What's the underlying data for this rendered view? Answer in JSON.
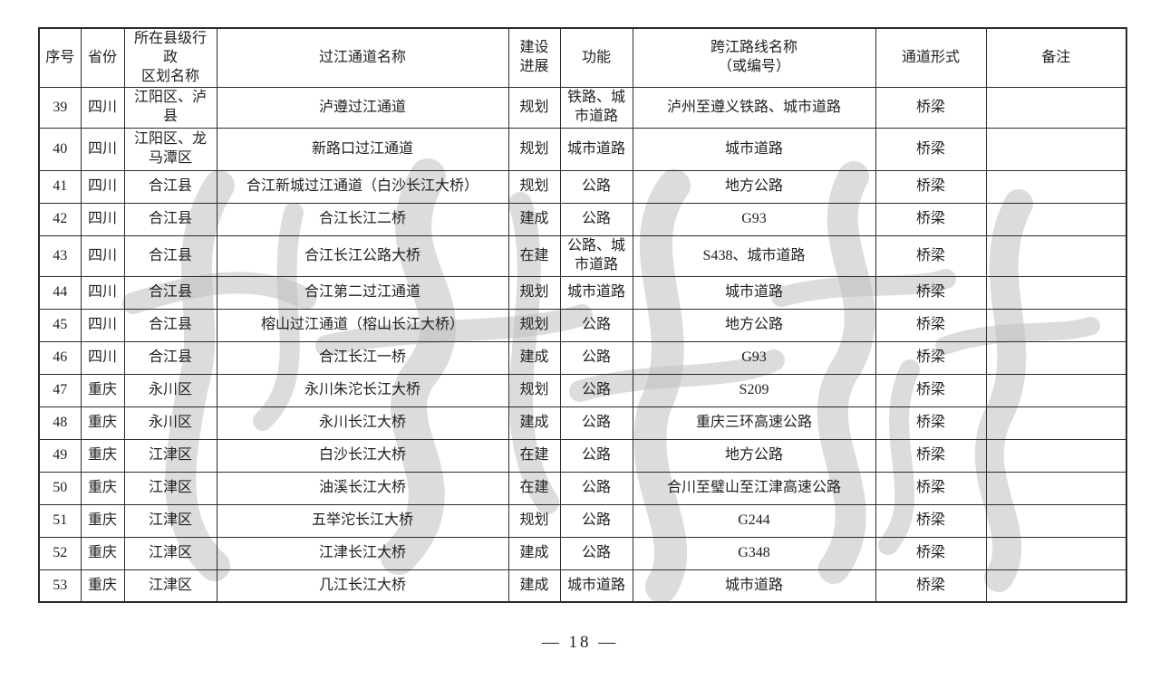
{
  "colors": {
    "border": "#2b2b2b",
    "text": "#1f1f1f",
    "watermark": "#bfbfbf"
  },
  "page": {
    "footer": "— 18 —"
  },
  "watermark": {
    "description": "gray calligraphy brush-stroke watermark across table"
  },
  "table": {
    "headers": [
      "序号",
      "省份",
      "所在县级行政\n区划名称",
      "过江通道名称",
      "建设\n进展",
      "功能",
      "跨江路线名称\n（或编号）",
      "通道形式",
      "备注"
    ],
    "rows": [
      {
        "no": "39",
        "province": "四川",
        "county": "江阳区、泸县",
        "name": "泸遵过江通道",
        "progress": "规划",
        "func": "铁路、城市道路",
        "route": "泸州至遵义铁路、城市道路",
        "form": "桥梁",
        "note": ""
      },
      {
        "no": "40",
        "province": "四川",
        "county": "江阳区、龙马潭区",
        "name": "新路口过江通道",
        "progress": "规划",
        "func": "城市道路",
        "route": "城市道路",
        "form": "桥梁",
        "note": ""
      },
      {
        "no": "41",
        "province": "四川",
        "county": "合江县",
        "name": "合江新城过江通道（白沙长江大桥）",
        "progress": "规划",
        "func": "公路",
        "route": "地方公路",
        "form": "桥梁",
        "note": ""
      },
      {
        "no": "42",
        "province": "四川",
        "county": "合江县",
        "name": "合江长江二桥",
        "progress": "建成",
        "func": "公路",
        "route": "G93",
        "form": "桥梁",
        "note": ""
      },
      {
        "no": "43",
        "province": "四川",
        "county": "合江县",
        "name": "合江长江公路大桥",
        "progress": "在建",
        "func": "公路、城市道路",
        "route": "S438、城市道路",
        "form": "桥梁",
        "note": ""
      },
      {
        "no": "44",
        "province": "四川",
        "county": "合江县",
        "name": "合江第二过江通道",
        "progress": "规划",
        "func": "城市道路",
        "route": "城市道路",
        "form": "桥梁",
        "note": ""
      },
      {
        "no": "45",
        "province": "四川",
        "county": "合江县",
        "name": "榕山过江通道（榕山长江大桥）",
        "progress": "规划",
        "func": "公路",
        "route": "地方公路",
        "form": "桥梁",
        "note": ""
      },
      {
        "no": "46",
        "province": "四川",
        "county": "合江县",
        "name": "合江长江一桥",
        "progress": "建成",
        "func": "公路",
        "route": "G93",
        "form": "桥梁",
        "note": ""
      },
      {
        "no": "47",
        "province": "重庆",
        "county": "永川区",
        "name": "永川朱沱长江大桥",
        "progress": "规划",
        "func": "公路",
        "route": "S209",
        "form": "桥梁",
        "note": ""
      },
      {
        "no": "48",
        "province": "重庆",
        "county": "永川区",
        "name": "永川长江大桥",
        "progress": "建成",
        "func": "公路",
        "route": "重庆三环高速公路",
        "form": "桥梁",
        "note": ""
      },
      {
        "no": "49",
        "province": "重庆",
        "county": "江津区",
        "name": "白沙长江大桥",
        "progress": "在建",
        "func": "公路",
        "route": "地方公路",
        "form": "桥梁",
        "note": ""
      },
      {
        "no": "50",
        "province": "重庆",
        "county": "江津区",
        "name": "油溪长江大桥",
        "progress": "在建",
        "func": "公路",
        "route": "合川至璧山至江津高速公路",
        "form": "桥梁",
        "note": ""
      },
      {
        "no": "51",
        "province": "重庆",
        "county": "江津区",
        "name": "五举沱长江大桥",
        "progress": "规划",
        "func": "公路",
        "route": "G244",
        "form": "桥梁",
        "note": ""
      },
      {
        "no": "52",
        "province": "重庆",
        "county": "江津区",
        "name": "江津长江大桥",
        "progress": "建成",
        "func": "公路",
        "route": "G348",
        "form": "桥梁",
        "note": ""
      },
      {
        "no": "53",
        "province": "重庆",
        "county": "江津区",
        "name": "几江长江大桥",
        "progress": "建成",
        "func": "城市道路",
        "route": "城市道路",
        "form": "桥梁",
        "note": ""
      }
    ]
  }
}
